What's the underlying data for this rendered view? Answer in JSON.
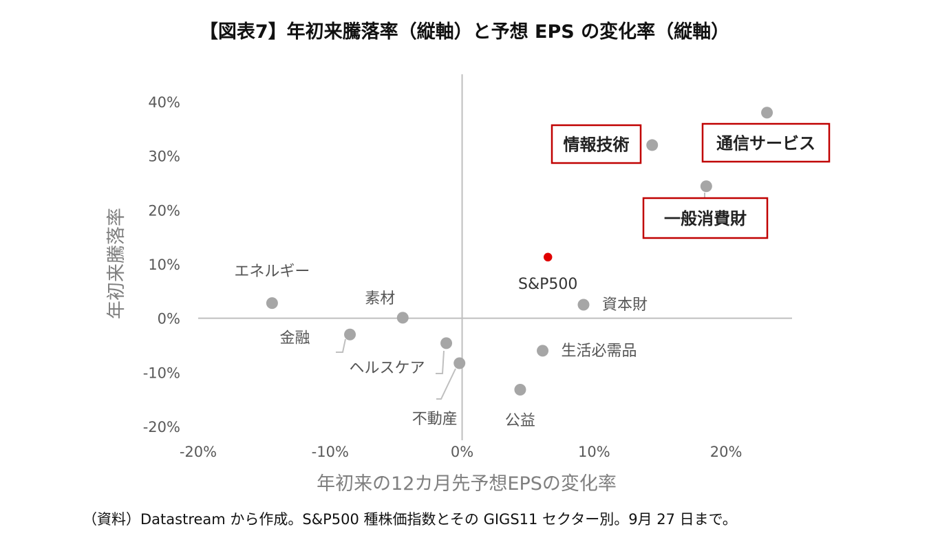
{
  "title": "【図表7】年初来騰落率（縦軸）と予想 EPS の変化率（縦軸）",
  "footnote": "（資料）Datastream から作成。S&P500 種株価指数とその GIGS11 セクター別。9月 27 日まで。",
  "colors": {
    "point": "#a6a6a6",
    "highlight_point": "#e00000",
    "axis": "#bfbfbf",
    "tick_text": "#595959",
    "axis_title": "#7f7f7f",
    "box_border": "#c00000"
  },
  "chart_data": {
    "type": "scatter",
    "xlabel": "年初来の12カ月先予想EPSの変化率",
    "ylabel": "年初来騰落率",
    "xlim": [
      -0.2,
      0.25
    ],
    "ylim": [
      -0.2,
      0.4
    ],
    "x_ticks": [
      {
        "value": -0.2,
        "label": "-20%"
      },
      {
        "value": -0.1,
        "label": "-10%"
      },
      {
        "value": 0.0,
        "label": "0%"
      },
      {
        "value": 0.1,
        "label": "10%"
      },
      {
        "value": 0.2,
        "label": "20%"
      }
    ],
    "y_ticks": [
      {
        "value": 0.4,
        "label": "40%"
      },
      {
        "value": 0.3,
        "label": "30%"
      },
      {
        "value": 0.2,
        "label": "20%"
      },
      {
        "value": 0.1,
        "label": "10%"
      },
      {
        "value": 0.0,
        "label": "0%"
      },
      {
        "value": -0.1,
        "label": "-10%"
      },
      {
        "value": -0.2,
        "label": "-20%"
      }
    ],
    "grid": false,
    "legend": "none",
    "points": [
      {
        "name": "通信サービス",
        "x": 0.231,
        "y": 0.38,
        "boxed": true
      },
      {
        "name": "情報技術",
        "x": 0.144,
        "y": 0.32,
        "boxed": true
      },
      {
        "name": "一般消費財",
        "x": 0.185,
        "y": 0.244,
        "boxed": true
      },
      {
        "name": "S&P500",
        "x": 0.065,
        "y": 0.113,
        "highlight": true
      },
      {
        "name": "資本財",
        "x": 0.092,
        "y": 0.025
      },
      {
        "name": "エネルギー",
        "x": -0.144,
        "y": 0.028
      },
      {
        "name": "素材",
        "x": -0.045,
        "y": 0.001
      },
      {
        "name": "金融",
        "x": -0.085,
        "y": -0.03
      },
      {
        "name": "ヘルスケア",
        "x": -0.012,
        "y": -0.046
      },
      {
        "name": "不動産",
        "x": -0.002,
        "y": -0.083
      },
      {
        "name": "生活必需品",
        "x": 0.061,
        "y": -0.06
      },
      {
        "name": "公益",
        "x": 0.044,
        "y": -0.132
      }
    ]
  }
}
